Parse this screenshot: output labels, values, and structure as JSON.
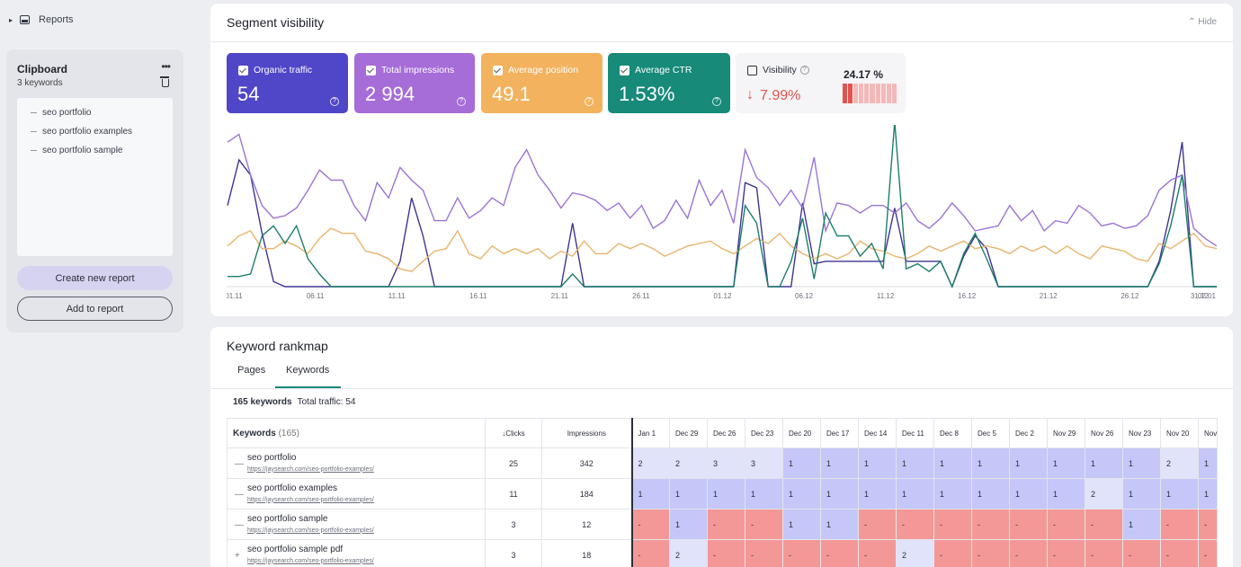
{
  "sidebar": {
    "reports_label": "Reports",
    "clipboard": {
      "title": "Clipboard",
      "subtitle": "3 keywords",
      "items": [
        "seo portfolio",
        "seo portfolio examples",
        "seo portfolio sample"
      ],
      "create_button": "Create new report",
      "add_button": "Add to report"
    }
  },
  "segment": {
    "title": "Segment visibility",
    "hide_label": "Hide",
    "metrics": [
      {
        "label": "Organic traffic",
        "value": "54",
        "color": "#5046c8"
      },
      {
        "label": "Total impressions",
        "value": "2 994",
        "color": "#a66cd8"
      },
      {
        "label": "Average position",
        "value": "49.1",
        "color": "#f2b25e"
      },
      {
        "label": "Average CTR",
        "value": "1.53%",
        "color": "#178a7a"
      }
    ],
    "visibility": {
      "label": "Visibility",
      "change": "7.99%",
      "percent": "24.17 %",
      "change_direction": "down"
    }
  },
  "chart_data": {
    "type": "line",
    "x_ticks": [
      "01.11",
      "06.11",
      "11.11",
      "16.11",
      "21.11",
      "26.11",
      "01.12",
      "06.12",
      "11.12",
      "16.12",
      "21.12",
      "26.12",
      "31.12",
      "02.01"
    ],
    "series": [
      {
        "name": "Organic traffic",
        "color": "#3e3590",
        "values": [
          3.2,
          5,
          4.4,
          2.1,
          0.2,
          0,
          0,
          0,
          0,
          0,
          0,
          0,
          0,
          0,
          0,
          1,
          3.5,
          2,
          0,
          0,
          0,
          0,
          0,
          0,
          0,
          0,
          0,
          0,
          0,
          0,
          2.5,
          0,
          0,
          0,
          0,
          0,
          0,
          0,
          0,
          0,
          0,
          0,
          0,
          0,
          0,
          4.1,
          3.9,
          0,
          0,
          0,
          3.3,
          0.9,
          1,
          1,
          1,
          1,
          1,
          1,
          3.1,
          1,
          1,
          1,
          1,
          0,
          1.2,
          2,
          1.5,
          0,
          0,
          0,
          0,
          0,
          0,
          0,
          0,
          0,
          0,
          0,
          0,
          0,
          0,
          1,
          3,
          5.7,
          0,
          0,
          0
        ]
      },
      {
        "name": "Total impressions",
        "color": "#9b74d4",
        "values": [
          5.7,
          6,
          4.4,
          3.2,
          2.7,
          2.8,
          3.1,
          3.8,
          4.6,
          4.2,
          4.2,
          3.2,
          2.6,
          4.1,
          3.5,
          4.7,
          4.2,
          3.8,
          2.6,
          2.6,
          3.5,
          2.7,
          3,
          3.5,
          3.2,
          4.7,
          5.4,
          4.4,
          3.8,
          3.1,
          3.7,
          3.6,
          3.4,
          3,
          3.3,
          2.7,
          3.2,
          2.3,
          2.6,
          3.4,
          2.7,
          4.2,
          3.2,
          3.8,
          2.5,
          5.4,
          4.3,
          3.9,
          3.2,
          3.8,
          3.1,
          5.1,
          2.2,
          3.3,
          3.2,
          2.9,
          3.2,
          3.2,
          2.9,
          3.3,
          2.6,
          2.3,
          2.7,
          3.3,
          2.8,
          2.2,
          2.3,
          2.4,
          3.2,
          2.6,
          3,
          2.2,
          2.6,
          2.5,
          3.2,
          2.9,
          2.4,
          2.5,
          2.3,
          2.4,
          2.8,
          3.8,
          4.2,
          4.4,
          2.3,
          1.9,
          1.6
        ]
      },
      {
        "name": "Average position",
        "color": "#e8b46b",
        "values": [
          1.6,
          2,
          2.2,
          1.5,
          1.5,
          1.8,
          1.6,
          1.3,
          1.9,
          2.3,
          2.1,
          2.1,
          1.4,
          1.3,
          1.1,
          0.7,
          0.6,
          1,
          1.4,
          1.5,
          2.2,
          1.3,
          1.1,
          1.6,
          1.3,
          1.5,
          1.3,
          1.5,
          1.1,
          1.4,
          1.2,
          1.8,
          1.3,
          1.3,
          1.7,
          1.5,
          1.7,
          1.5,
          1.2,
          1.4,
          1.6,
          1.7,
          1.8,
          1.5,
          1.3,
          1.6,
          1.9,
          1.7,
          2.1,
          1.6,
          1.3,
          1.1,
          1.3,
          1.1,
          1.3,
          1.8,
          1.5,
          1.4,
          1.2,
          1.1,
          1.3,
          1.6,
          1.4,
          1.6,
          1.8,
          1.5,
          1.6,
          1.5,
          1.3,
          1.6,
          1.4,
          1.6,
          1.3,
          1.6,
          1.3,
          1.1,
          1.6,
          1.5,
          1.4,
          1.1,
          1,
          1.7,
          1.5,
          1.8,
          2.1,
          1.6,
          1.5
        ]
      },
      {
        "name": "Average CTR",
        "color": "#1d7e6d",
        "values": [
          0.4,
          0.4,
          0.5,
          2,
          2.4,
          1.7,
          2.4,
          1.1,
          0.5,
          0,
          0,
          0,
          0,
          0,
          0,
          0,
          0,
          0,
          0,
          0,
          0,
          0,
          0,
          0,
          0,
          0,
          0,
          0,
          0,
          0,
          0.5,
          0,
          0,
          0,
          0,
          0,
          0,
          0,
          0,
          0,
          0,
          0,
          0,
          0,
          0,
          3.2,
          2.5,
          0,
          0,
          1,
          2.7,
          0.3,
          2.9,
          2,
          2,
          1.2,
          1.7,
          0.7,
          6.5,
          0.7,
          0.9,
          0.6,
          1,
          0,
          1.3,
          2.1,
          1.1,
          0,
          0,
          0,
          0,
          0,
          0,
          0,
          0,
          0,
          0,
          0,
          0,
          0,
          0,
          0.9,
          2.4,
          4.4,
          0,
          0,
          0
        ]
      }
    ]
  },
  "rankmap": {
    "title": "Keyword rankmap",
    "tabs": [
      "Pages",
      "Keywords"
    ],
    "active_tab": "Keywords",
    "summary_count": "165 keywords",
    "summary_traffic": "Total traffic: 54",
    "columns": {
      "keywords": "Keywords",
      "keywords_count": "(165)",
      "clicks": "Clicks",
      "impressions": "Impressions"
    },
    "dates": [
      "Jan 1",
      "Dec 29",
      "Dec 26",
      "Dec 23",
      "Dec 20",
      "Dec 17",
      "Dec 14",
      "Dec 11",
      "Dec 8",
      "Dec 5",
      "Dec 2",
      "Nov 29",
      "Nov 26",
      "Nov 23",
      "Nov 20",
      "Nov"
    ],
    "rows": [
      {
        "symbol": "—",
        "keyword": "seo portfolio",
        "url": "https://jaysearch.com/seo-portfolio-examples/",
        "clicks": "25",
        "impressions": "342",
        "ranks": [
          "2",
          "2",
          "3",
          "3",
          "1",
          "1",
          "1",
          "1",
          "1",
          "1",
          "1",
          "1",
          "1",
          "1",
          "2",
          "1"
        ]
      },
      {
        "symbol": "—",
        "keyword": "seo portfolio examples",
        "url": "https://jaysearch.com/seo-portfolio-examples/",
        "clicks": "11",
        "impressions": "184",
        "ranks": [
          "1",
          "1",
          "1",
          "1",
          "1",
          "1",
          "1",
          "1",
          "1",
          "1",
          "1",
          "1",
          "2",
          "1",
          "1",
          "1"
        ]
      },
      {
        "symbol": "—",
        "keyword": "seo portfolio sample",
        "url": "https://jaysearch.com/seo-portfolio-examples/",
        "clicks": "3",
        "impressions": "12",
        "ranks": [
          "-",
          "1",
          "-",
          "-",
          "1",
          "1",
          "-",
          "-",
          "-",
          "-",
          "-",
          "-",
          "-",
          "1",
          "-",
          "-"
        ]
      },
      {
        "symbol": "+",
        "keyword": "seo portfolio sample pdf",
        "url": "https://jaysearch.com/seo-portfolio-examples/",
        "clicks": "3",
        "impressions": "18",
        "ranks": [
          "-",
          "2",
          "-",
          "-",
          "-",
          "-",
          "-",
          "2",
          "-",
          "-",
          "-",
          "-",
          "-",
          "-",
          "-",
          "-"
        ]
      }
    ]
  }
}
